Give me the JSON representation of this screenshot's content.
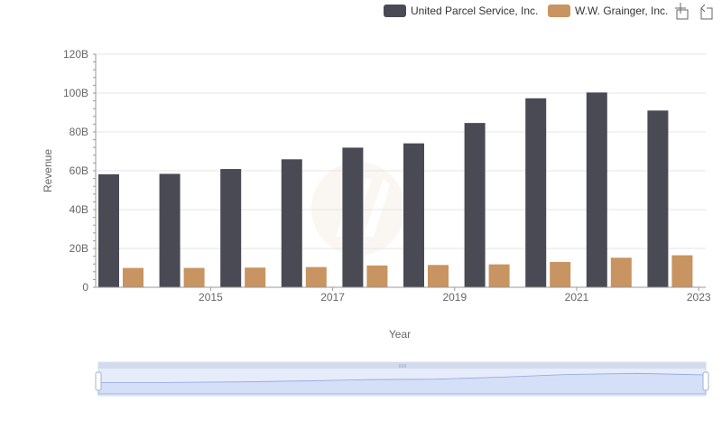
{
  "chart_data": {
    "type": "bar",
    "title": "",
    "xlabel": "Year",
    "ylabel": "Revenue",
    "ylim": [
      0,
      120000000000
    ],
    "yticks": [
      {
        "value": 0,
        "label": "0"
      },
      {
        "value": 20000000000,
        "label": "20B"
      },
      {
        "value": 40000000000,
        "label": "40B"
      },
      {
        "value": 60000000000,
        "label": "60B"
      },
      {
        "value": 80000000000,
        "label": "80B"
      },
      {
        "value": 100000000000,
        "label": "100B"
      },
      {
        "value": 120000000000,
        "label": "120B"
      }
    ],
    "categories": [
      "2014",
      "2015",
      "2016",
      "2017",
      "2018",
      "2019",
      "2020",
      "2021",
      "2022",
      "2023"
    ],
    "xtick_labels": [
      "",
      "2015",
      "",
      "2017",
      "",
      "2019",
      "",
      "2021",
      "",
      "2023"
    ],
    "grid": true,
    "legend_position": "top-right",
    "series": [
      {
        "name": "United Parcel Service, Inc.",
        "color": "#4a4a55",
        "values": [
          58200000000,
          58400000000,
          60900000000,
          65900000000,
          71900000000,
          74100000000,
          84600000000,
          97300000000,
          100300000000,
          91000000000
        ]
      },
      {
        "name": "W.W. Grainger, Inc.",
        "color": "#c89461",
        "values": [
          9960000000,
          9970000000,
          10140000000,
          10430000000,
          11220000000,
          11490000000,
          11800000000,
          13020000000,
          15230000000,
          16480000000
        ]
      }
    ]
  },
  "toolbar": {
    "zoom_icon": "zoom-select-icon",
    "reset_icon": "zoom-reset-icon"
  },
  "data_zoom": {
    "range_start": 0,
    "range_end": 100
  }
}
